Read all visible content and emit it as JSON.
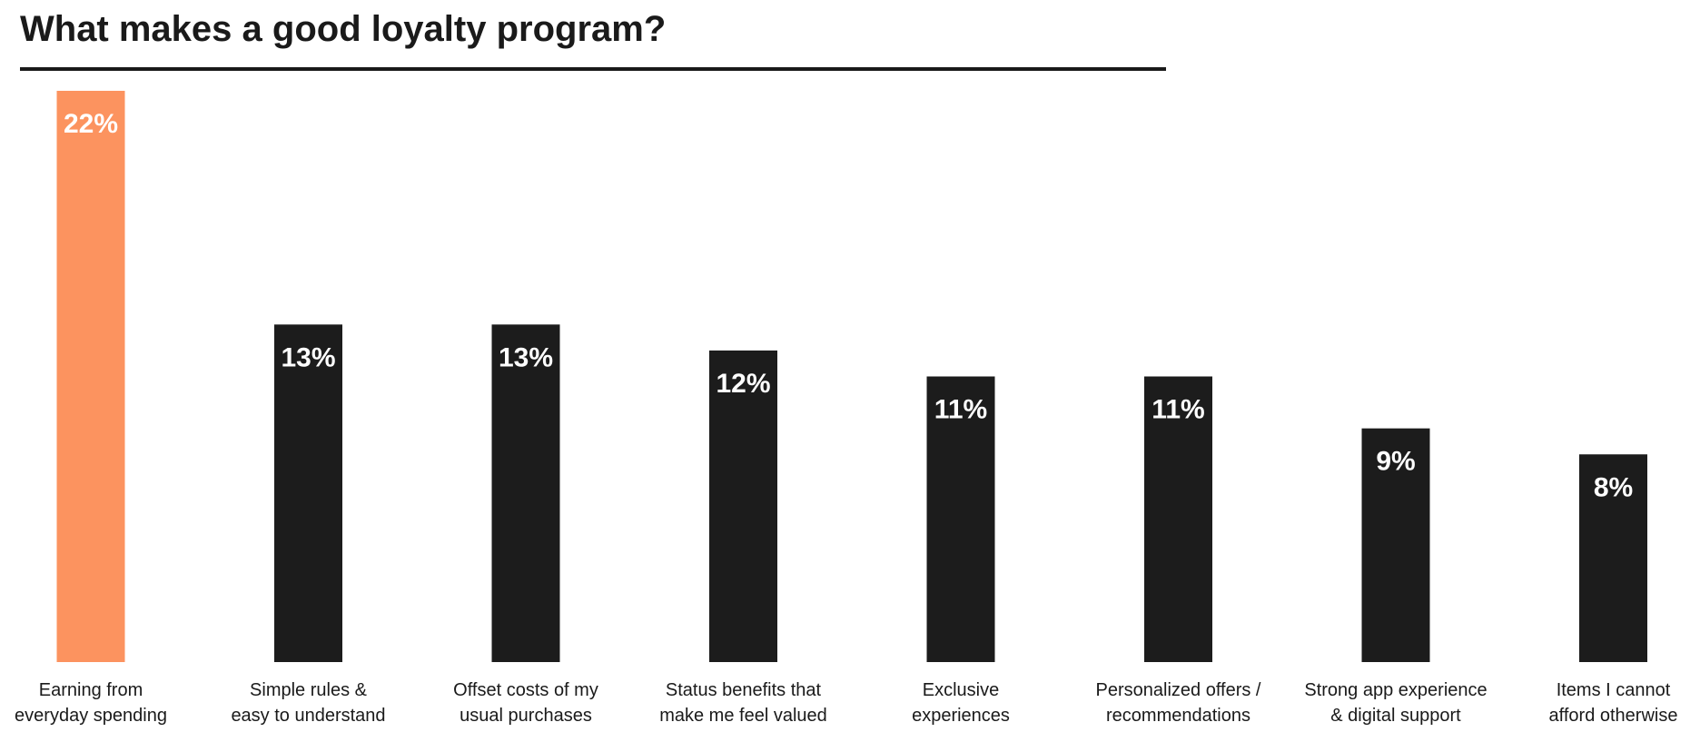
{
  "chart_data": {
    "type": "bar",
    "title": "What makes a good loyalty program?",
    "categories": [
      [
        "Earning from",
        "everyday spending"
      ],
      [
        "Simple rules &",
        "easy to understand"
      ],
      [
        "Offset costs of my",
        "usual purchases"
      ],
      [
        "Status benefits that",
        "make me feel valued"
      ],
      [
        "Exclusive",
        "experiences"
      ],
      [
        "Personalized offers /",
        "recommendations"
      ],
      [
        "Strong app experience",
        "& digital support"
      ],
      [
        "Items I cannot",
        "afford otherwise"
      ]
    ],
    "values": [
      22,
      13,
      13,
      12,
      11,
      11,
      9,
      8
    ],
    "value_labels": [
      "22%",
      "13%",
      "13%",
      "12%",
      "11%",
      "11%",
      "9%",
      "8%"
    ],
    "highlight_index": 0,
    "ylim": [
      0,
      22
    ],
    "grid": false,
    "legend": "none"
  },
  "colors": {
    "highlight": "#fc935f",
    "bar": "#1c1c1c",
    "text": "#1a1a1a"
  }
}
